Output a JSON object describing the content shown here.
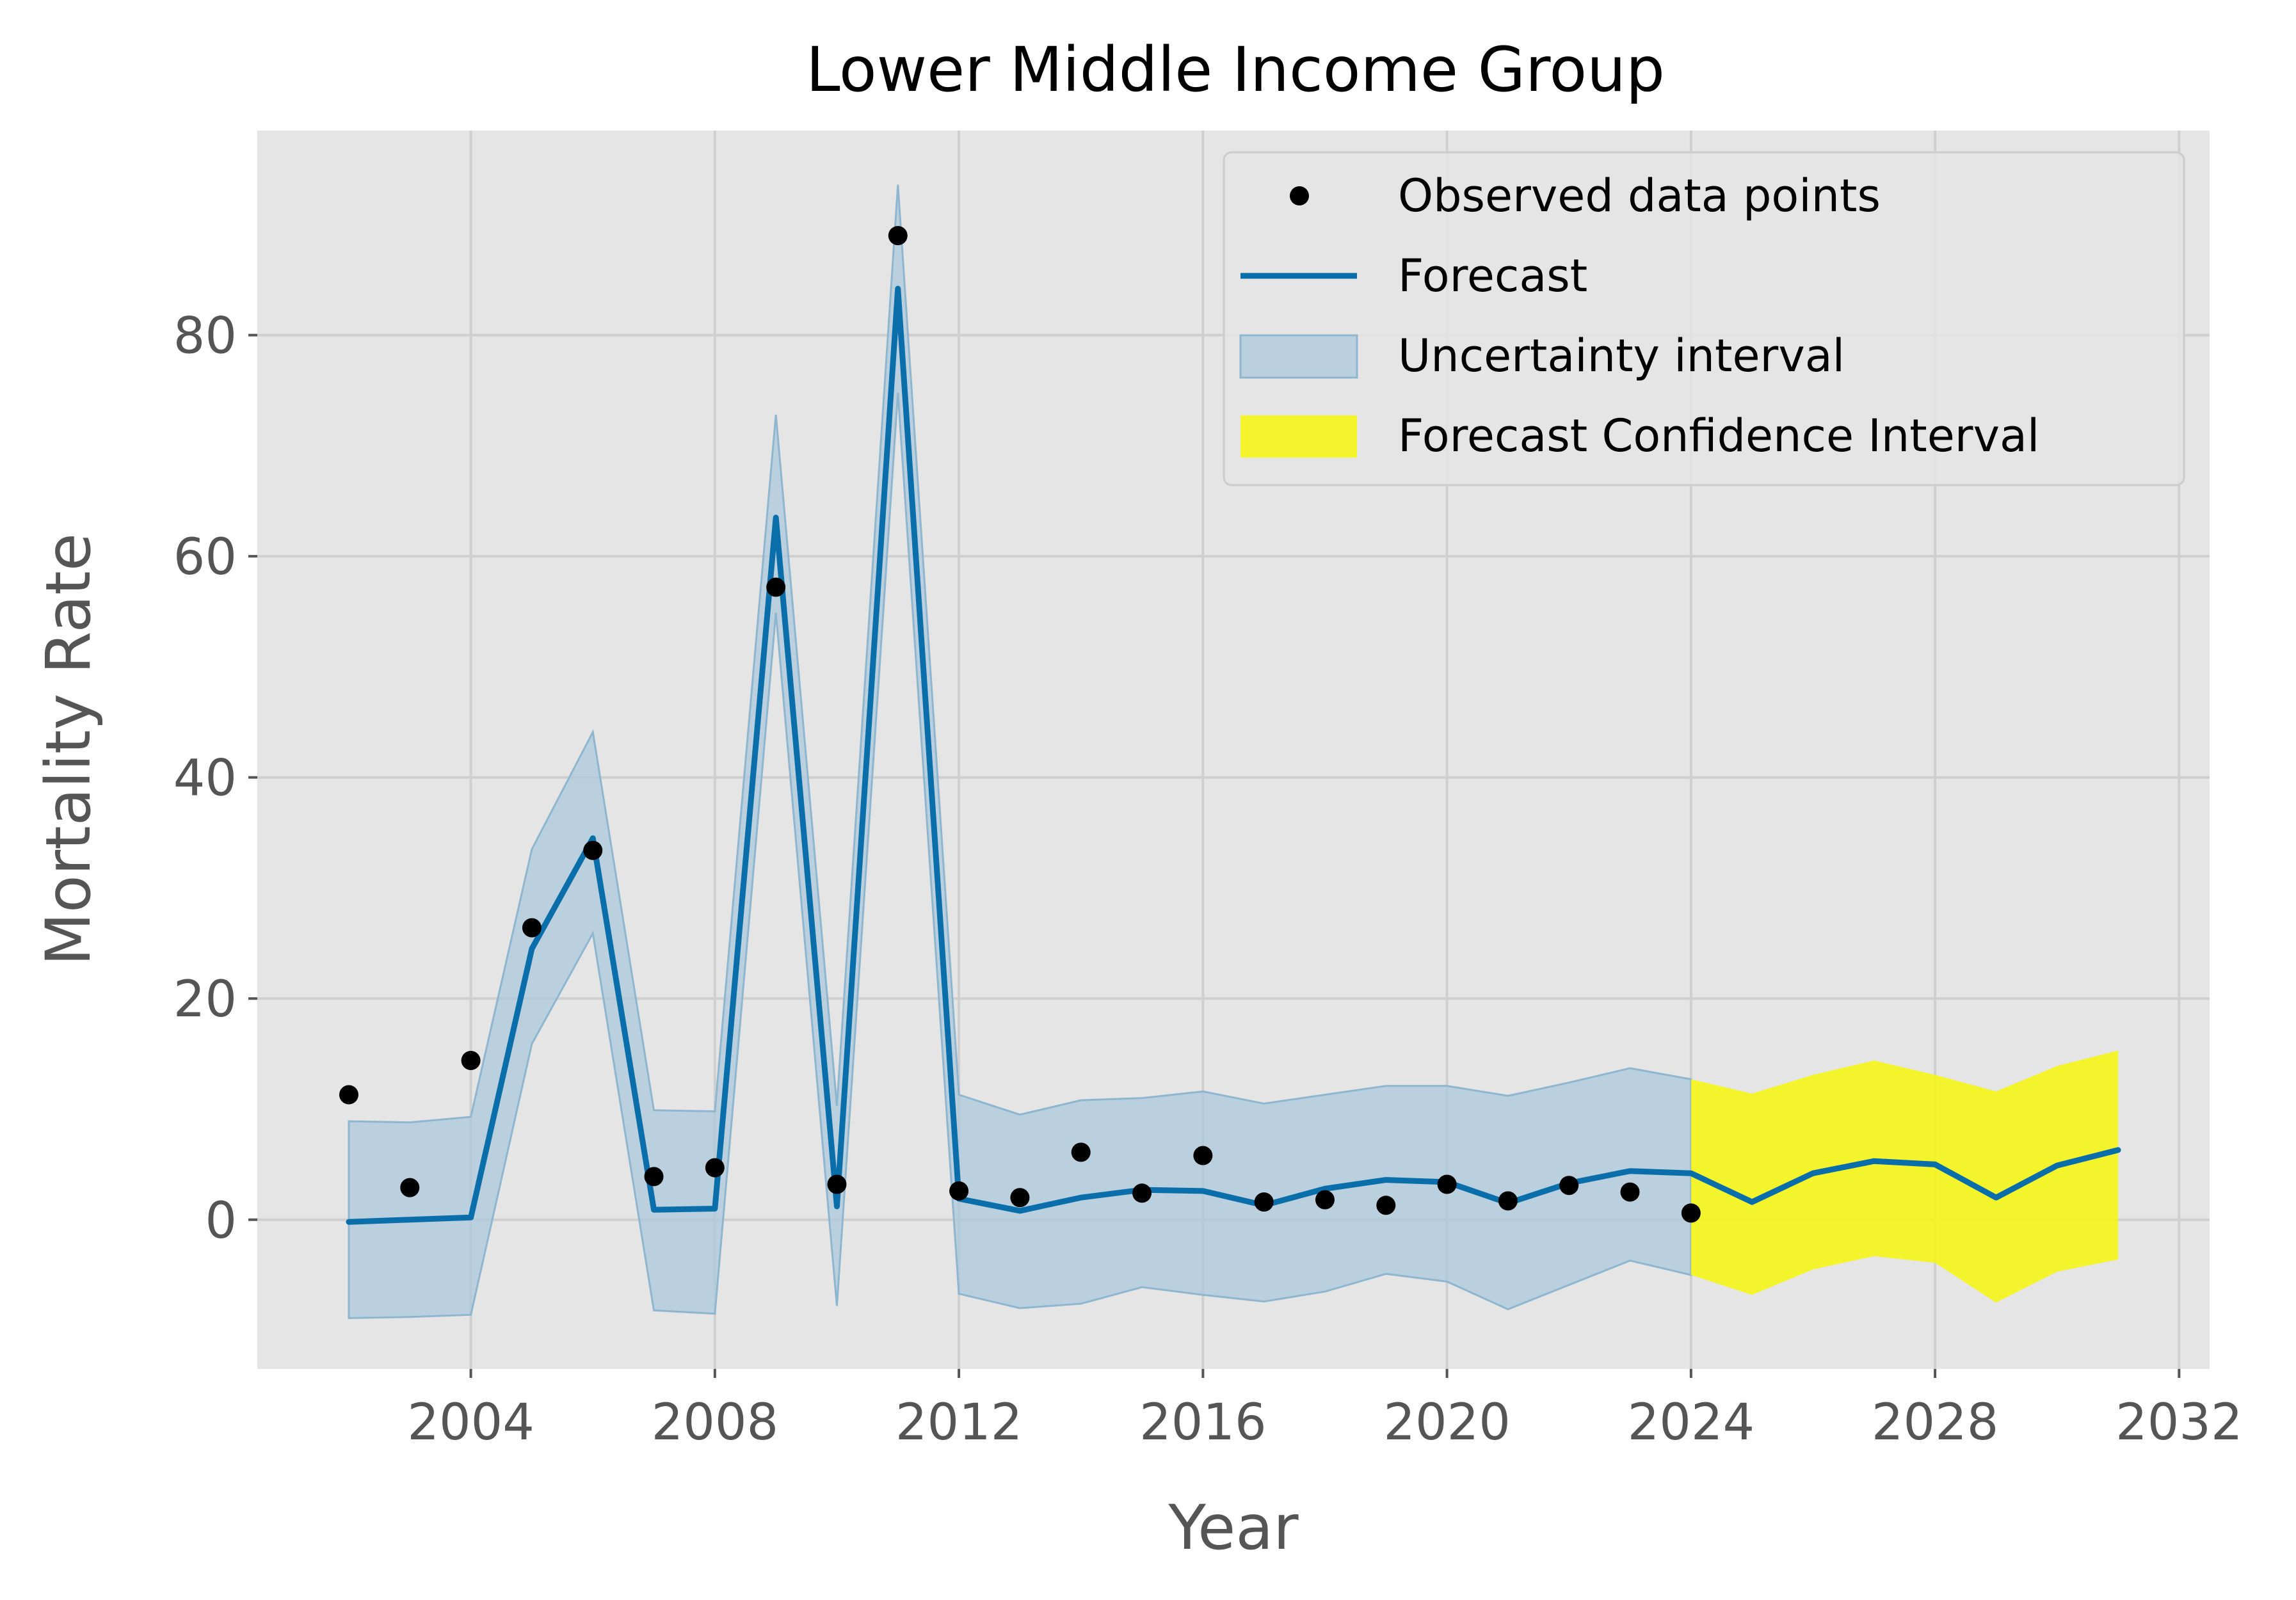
{
  "chart_data": {
    "type": "line",
    "title": "Lower Middle Income Group",
    "xlabel": "Year",
    "ylabel": "Mortality Rate",
    "xlim": [
      2000.5,
      2032.5
    ],
    "ylim": [
      -13.5,
      98.5
    ],
    "x_ticks": [
      2004,
      2008,
      2012,
      2016,
      2020,
      2024,
      2028,
      2032
    ],
    "y_ticks": [
      0,
      20,
      40,
      60,
      80
    ],
    "grid": true,
    "legend_position": "upper right",
    "colors": {
      "plot_background": "#e5e5e5",
      "grid": "#cfcfcf",
      "observed": "#000000",
      "forecast": "#0a6eab",
      "uncertainty_fill": "#a9c8dc",
      "uncertainty_edge": "#8fb6cf",
      "forecast_ci": "#f5f518"
    },
    "legend": [
      {
        "label": "Observed data points",
        "kind": "marker"
      },
      {
        "label": "Forecast",
        "kind": "line"
      },
      {
        "label": "Uncertainty interval",
        "kind": "patch"
      },
      {
        "label": "Forecast Confidence Interval",
        "kind": "patch-yellow"
      }
    ],
    "series": [
      {
        "name": "Observed data points",
        "kind": "scatter",
        "x": [
          2002,
          2003,
          2004,
          2005,
          2006,
          2007,
          2008,
          2009,
          2010,
          2011,
          2012,
          2013,
          2014,
          2015,
          2016,
          2017,
          2018,
          2019,
          2020,
          2021,
          2022,
          2023,
          2024
        ],
        "y": [
          11.3,
          2.9,
          14.4,
          26.4,
          33.4,
          3.9,
          4.7,
          57.2,
          3.2,
          89.0,
          2.6,
          2.0,
          6.1,
          2.4,
          5.8,
          1.6,
          1.8,
          1.3,
          3.2,
          1.7,
          3.1,
          2.5,
          0.6
        ]
      },
      {
        "name": "Forecast",
        "kind": "line",
        "x": [
          2002,
          2003,
          2004,
          2005,
          2006,
          2007,
          2008,
          2009,
          2010,
          2011,
          2012,
          2013,
          2014,
          2015,
          2016,
          2017,
          2018,
          2019,
          2020,
          2021,
          2022,
          2023,
          2024,
          2025,
          2026,
          2027,
          2028,
          2029,
          2030,
          2031
        ],
        "y": [
          -0.2,
          0.0,
          0.2,
          24.5,
          34.5,
          0.9,
          1.0,
          63.5,
          1.2,
          84.2,
          1.9,
          0.8,
          2.0,
          2.7,
          2.6,
          1.3,
          2.8,
          3.6,
          3.4,
          1.5,
          3.3,
          4.4,
          4.2,
          1.6,
          4.2,
          5.3,
          5.0,
          2.0,
          4.9,
          6.3
        ]
      },
      {
        "name": "Uncertainty interval",
        "kind": "band",
        "x": [
          2002,
          2003,
          2004,
          2005,
          2006,
          2007,
          2008,
          2009,
          2010,
          2011,
          2012,
          2013,
          2014,
          2015,
          2016,
          2017,
          2018,
          2019,
          2020,
          2021,
          2022,
          2023,
          2024
        ],
        "upper": [
          8.9,
          8.8,
          9.3,
          33.5,
          44.1,
          9.9,
          9.8,
          72.8,
          10.3,
          93.6,
          11.3,
          9.5,
          10.8,
          11.0,
          11.6,
          10.5,
          11.3,
          12.1,
          12.1,
          11.2,
          12.4,
          13.7,
          12.7
        ],
        "lower": [
          -8.9,
          -8.8,
          -8.6,
          15.9,
          25.9,
          -8.2,
          -8.5,
          54.9,
          -7.8,
          74.8,
          -6.7,
          -8.0,
          -7.6,
          -6.1,
          -6.8,
          -7.4,
          -6.5,
          -4.9,
          -5.6,
          -8.1,
          -5.9,
          -3.7,
          -5.0
        ]
      },
      {
        "name": "Forecast Confidence Interval",
        "kind": "band",
        "x": [
          2024,
          2025,
          2026,
          2027,
          2028,
          2029,
          2030,
          2031
        ],
        "upper": [
          12.7,
          11.4,
          13.1,
          14.4,
          13.1,
          11.6,
          13.9,
          15.3
        ],
        "lower": [
          -5.0,
          -6.8,
          -4.5,
          -3.3,
          -3.9,
          -7.5,
          -4.7,
          -3.6
        ]
      }
    ]
  }
}
